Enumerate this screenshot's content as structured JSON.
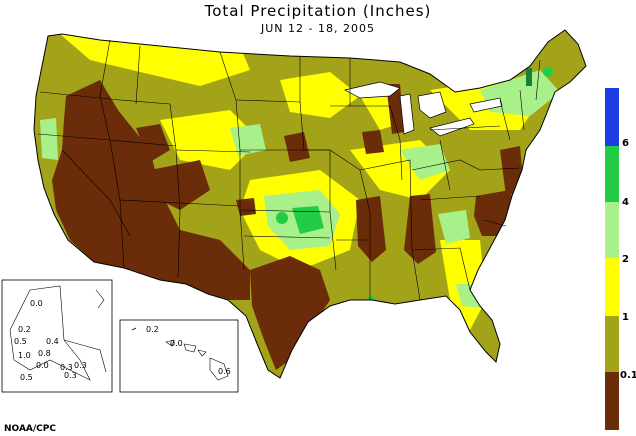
{
  "title": "Total Precipitation (Inches)",
  "subtitle": "JUN 12 - 18, 2005",
  "credit": "NOAA/CPC",
  "colors": {
    "lt_0_1": "#6b2c09",
    "0_1_to_1": "#a3a31a",
    "1_to_2": "#ffff00",
    "2_to_4": "#a8f08a",
    "4_to_6": "#22cc44",
    "gt_6": "#1e3ce6"
  },
  "legend": {
    "labels": [
      "6",
      "4",
      "2",
      "1",
      "0.1"
    ]
  },
  "alaska_inset": {
    "values": [
      "0.0",
      "0.2",
      "0.5",
      "0.4",
      "1.0",
      "0.3",
      "0.0",
      "0.8",
      "0.3",
      "0.3",
      "0.5"
    ]
  },
  "hawaii_inset": {
    "values": [
      "0.2",
      "0.0",
      "0.6"
    ]
  }
}
